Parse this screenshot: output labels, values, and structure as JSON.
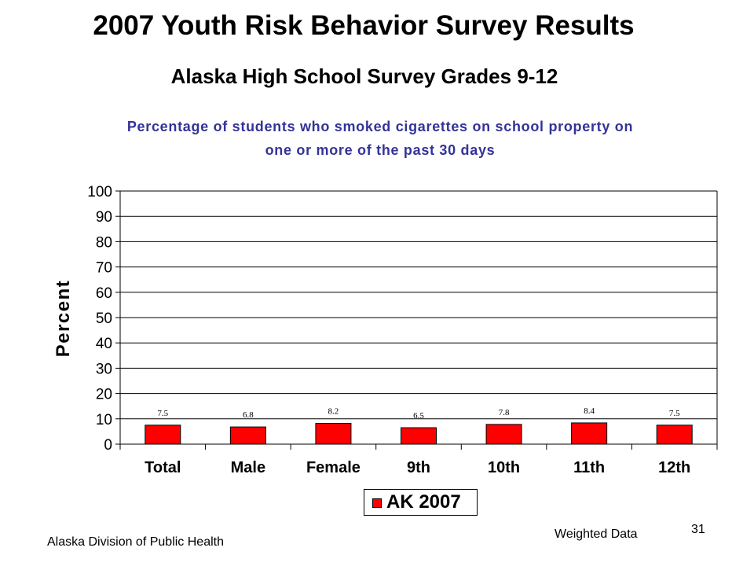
{
  "slide": {
    "title": "2007 Youth Risk Behavior Survey Results",
    "subtitle": "Alaska High School Survey Grades 9-12",
    "footer_left": "Alaska Division of Public Health",
    "footer_right": "Weighted Data",
    "page_number": "31"
  },
  "colors": {
    "chart_title": "#333399",
    "bar": "#ff0000",
    "grid": "#000000"
  },
  "chart_data": {
    "type": "bar",
    "title_lines": [
      "Percentage of students who smoked cigarettes on school property on",
      "one or more of the past 30 days"
    ],
    "categories": [
      "Total",
      "Male",
      "Female",
      "9th",
      "10th",
      "11th",
      "12th"
    ],
    "series": [
      {
        "name": "AK 2007",
        "values": [
          7.5,
          6.8,
          8.2,
          6.5,
          7.8,
          8.4,
          7.5
        ],
        "color": "#ff0000"
      }
    ],
    "data_labels": true,
    "xlabel": "",
    "ylabel": "Percent",
    "ylim": [
      0,
      100
    ],
    "yticks": [
      0,
      10,
      20,
      30,
      40,
      50,
      60,
      70,
      80,
      90,
      100
    ],
    "grid": true,
    "legend": "bottom"
  }
}
